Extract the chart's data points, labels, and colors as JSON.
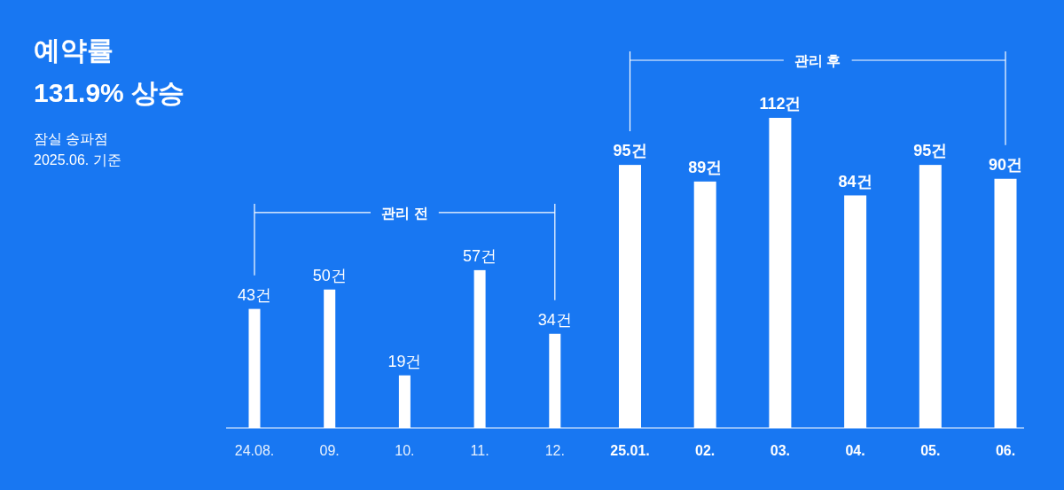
{
  "chart_data": {
    "type": "bar",
    "title": "예약률\n131.9% 상승",
    "subtitle": "잠실 송파점\n2025.06. 기준",
    "categories": [
      "24.08.",
      "09.",
      "10.",
      "11.",
      "12.",
      "25.01.",
      "02.",
      "03.",
      "04.",
      "05.",
      "06."
    ],
    "stacked": true,
    "annotations": [
      "관리 전",
      "관리 후"
    ],
    "series": [
      {
        "color": "#ffffff",
        "values": [
          43,
          50,
          19,
          57,
          34,
          null,
          null,
          null,
          null,
          null,
          null
        ],
        "value_labels": [
          "43건",
          "50건",
          "19건",
          "57건",
          "34건",
          null,
          null,
          null,
          null,
          null,
          null
        ]
      },
      {
        "color": "#ffffff",
        "values": [
          null,
          null,
          null,
          null,
          null,
          95,
          89,
          112,
          84,
          95,
          90
        ],
        "value_labels": [
          null,
          null,
          null,
          null,
          null,
          "95건",
          "89건",
          "112건",
          "84건",
          "95건",
          "90건"
        ]
      }
    ]
  }
}
